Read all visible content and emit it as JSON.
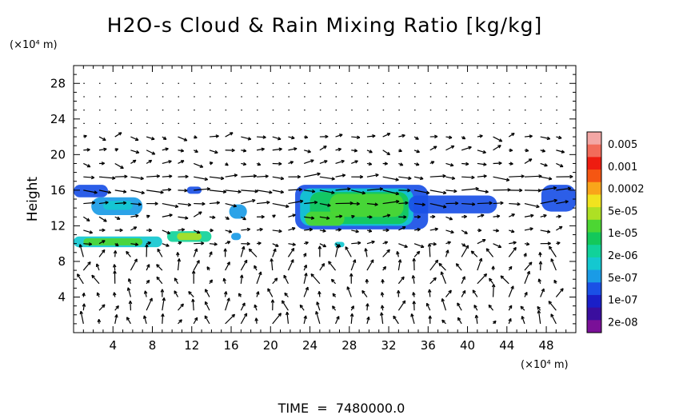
{
  "chart_data": {
    "type": "heatmap",
    "title": "H2O-s Cloud & Rain Mixing Ratio [kg/kg]",
    "ylabel": "Height",
    "y_unit_label": "(×10⁴ m)",
    "x_unit_label": "(×10⁴ m)",
    "footer": "TIME  =  7480000.0",
    "xlim": [
      0,
      51
    ],
    "ylim": [
      0,
      30
    ],
    "x_ticks": [
      4,
      8,
      12,
      16,
      20,
      24,
      28,
      32,
      36,
      40,
      44,
      48
    ],
    "y_ticks": [
      4,
      8,
      12,
      16,
      20,
      24,
      28
    ],
    "grid": false,
    "overlay": "wind vectors",
    "colorbar": {
      "labels": [
        "0.005",
        "0.001",
        "0.0002",
        "5e-05",
        "1e-05",
        "2e-06",
        "5e-07",
        "1e-07",
        "2e-08"
      ],
      "colors": [
        "#f3a7a5",
        "#f26b5a",
        "#ee1c10",
        "#f55612",
        "#f9a51a",
        "#f1e31f",
        "#aee024",
        "#4cd633",
        "#14c85a",
        "#11d29a",
        "#14c8d0",
        "#1a9be6",
        "#1a50e6",
        "#1a1fc8",
        "#3a0e9e",
        "#7a1098"
      ]
    },
    "regions": [
      {
        "x": [
          0,
          3.5
        ],
        "y": [
          15.2,
          16.6
        ],
        "level": 0.1
      },
      {
        "x": [
          1.8,
          7
        ],
        "y": [
          13.2,
          15.2
        ],
        "level": 0.15
      },
      {
        "x": [
          3,
          6
        ],
        "y": [
          13.8,
          14.8
        ],
        "level": 0.3
      },
      {
        "x": [
          0,
          9
        ],
        "y": [
          9.6,
          10.8
        ],
        "level": 0.3
      },
      {
        "x": [
          1,
          7
        ],
        "y": [
          9.8,
          10.6
        ],
        "level": 0.6
      },
      {
        "x": [
          9.5,
          14
        ],
        "y": [
          10.2,
          11.4
        ],
        "level": 0.35
      },
      {
        "x": [
          10.5,
          13
        ],
        "y": [
          10.4,
          11.2
        ],
        "level": 0.7
      },
      {
        "x": [
          15.8,
          17.6
        ],
        "y": [
          12.8,
          14.4
        ],
        "level": 0.15
      },
      {
        "x": [
          22.5,
          36
        ],
        "y": [
          11.6,
          16.6
        ],
        "level": 0.1
      },
      {
        "x": [
          23,
          34.5
        ],
        "y": [
          12,
          16.2
        ],
        "level": 0.25
      },
      {
        "x": [
          24,
          34
        ],
        "y": [
          12.2,
          15.8
        ],
        "level": 0.45
      },
      {
        "x": [
          23.5,
          27.5
        ],
        "y": [
          12,
          13.6
        ],
        "level": 0.6
      },
      {
        "x": [
          26,
          33.5
        ],
        "y": [
          13,
          15.6
        ],
        "level": 0.55
      },
      {
        "x": [
          34,
          43
        ],
        "y": [
          13.4,
          15.4
        ],
        "level": 0.12
      },
      {
        "x": [
          47.5,
          51
        ],
        "y": [
          13.6,
          16.6
        ],
        "level": 0.12
      },
      {
        "x": [
          11.5,
          13
        ],
        "y": [
          15.6,
          16.4
        ],
        "level": 0.1
      },
      {
        "x": [
          26.5,
          27.5
        ],
        "y": [
          9.6,
          10.2
        ],
        "level": 0.3
      },
      {
        "x": [
          16,
          17
        ],
        "y": [
          10.4,
          11.2
        ],
        "level": 0.15
      }
    ]
  }
}
